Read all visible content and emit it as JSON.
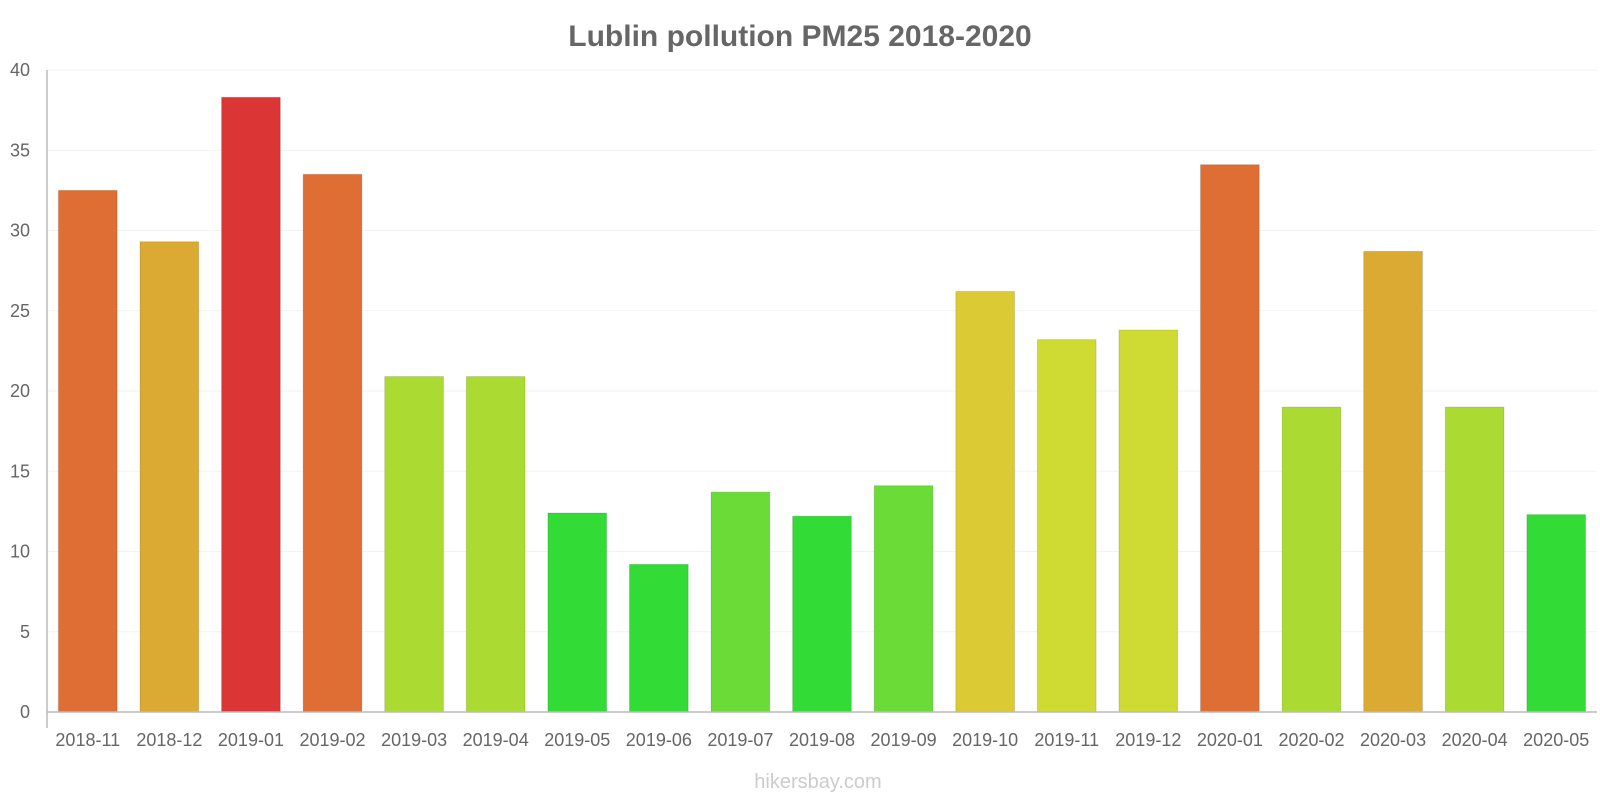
{
  "credit": "hikersbay.com",
  "chart_data": {
    "type": "bar",
    "title": "Lublin pollution PM25 2018-2020",
    "xlabel": "",
    "ylabel": "",
    "ylim": [
      0,
      40
    ],
    "yticks": [
      0,
      5,
      10,
      15,
      20,
      25,
      30,
      35,
      40
    ],
    "categories": [
      "2018-11",
      "2018-12",
      "2019-01",
      "2019-02",
      "2019-03",
      "2019-04",
      "2019-05",
      "2019-06",
      "2019-07",
      "2019-08",
      "2019-09",
      "2019-10",
      "2019-11",
      "2019-12",
      "2020-01",
      "2020-02",
      "2020-03",
      "2020-04",
      "2020-05"
    ],
    "values": [
      32.5,
      29.3,
      38.3,
      33.5,
      20.9,
      20.9,
      12.4,
      9.2,
      13.7,
      12.2,
      14.1,
      26.2,
      23.2,
      23.8,
      34.1,
      19.0,
      28.7,
      19.0,
      12.3
    ],
    "colors": [
      "#de6e33",
      "#dbaa33",
      "#db3535",
      "#de6e33",
      "#abdb33",
      "#abdb33",
      "#33db37",
      "#33db37",
      "#6adb37",
      "#33db37",
      "#6adb37",
      "#dbca33",
      "#cfdb33",
      "#cfdb33",
      "#de6e33",
      "#abdb33",
      "#dbaa33",
      "#abdb33",
      "#33db37"
    ],
    "grid": true,
    "legend": "none"
  }
}
